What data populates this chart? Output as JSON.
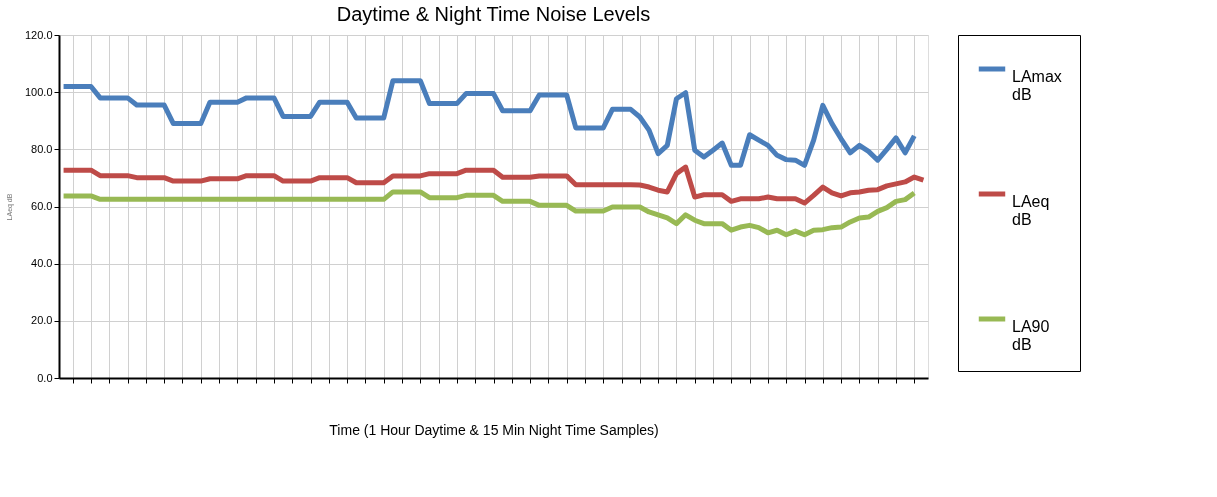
{
  "chart_data": {
    "type": "line",
    "title": "Daytime & Night Time Noise Levels",
    "xlabel": "Time (1 Hour Daytime & 15 Min Night Time Samples)",
    "ylabel": "LAeq dB",
    "categories": [
      null,
      null,
      null,
      null,
      null,
      null,
      null,
      null,
      null,
      null,
      null,
      null,
      null,
      null,
      null,
      null,
      null,
      null,
      null,
      null,
      null,
      null,
      null,
      null,
      null,
      null,
      null,
      null,
      null,
      null,
      null,
      null,
      null,
      null,
      null,
      null,
      null,
      null,
      null,
      null,
      null,
      null,
      null,
      null,
      null,
      null,
      null,
      null,
      null,
      null,
      null,
      null,
      null,
      null,
      null,
      null,
      null,
      null,
      null,
      null,
      null,
      null,
      null,
      null,
      null,
      null,
      null,
      null,
      null,
      null,
      null,
      null,
      null,
      null,
      null,
      null,
      null,
      null,
      null,
      null,
      null,
      null,
      null,
      null,
      null,
      null,
      null,
      null,
      null,
      null,
      null,
      null,
      null,
      null,
      null
    ],
    "series": [
      {
        "name": "LAmax dB",
        "color": "#4a7ebb",
        "values": [
          102,
          102,
          102,
          102,
          98,
          98,
          98,
          98,
          95.5,
          95.5,
          95.5,
          95.5,
          89,
          89,
          89,
          89,
          96.5,
          96.5,
          96.5,
          96.5,
          98,
          98,
          98,
          98,
          91.5,
          91.5,
          91.5,
          91.5,
          96.5,
          96.5,
          96.5,
          96.5,
          91,
          91,
          91,
          91,
          104,
          104,
          104,
          104,
          96,
          96,
          96,
          96,
          99.5,
          99.5,
          99.5,
          99.5,
          93.5,
          93.5,
          93.5,
          93.5,
          99,
          99,
          99,
          99,
          87.5,
          87.5,
          87.5,
          87.5,
          94,
          94,
          94,
          91.3,
          86.7,
          78.5,
          81.4,
          97.7,
          99.8,
          79.7,
          77.3,
          79.7,
          82.2,
          74.4,
          74.4,
          85.1,
          83.2,
          81.4,
          77.9,
          76.4,
          76.2,
          74.4,
          83.2,
          95.4,
          89,
          83.7,
          78.8,
          81.4,
          79.3,
          76.2,
          80,
          84,
          78.8,
          84.7,
          null
        ]
      },
      {
        "name": "LAeq dB",
        "color": "#be4b48",
        "values": [
          72.7,
          72.7,
          72.7,
          72.7,
          70.8,
          70.8,
          70.8,
          70.8,
          70.1,
          70.1,
          70.1,
          70.1,
          68.9,
          68.9,
          68.9,
          68.9,
          69.7,
          69.7,
          69.7,
          69.7,
          70.8,
          70.8,
          70.8,
          70.8,
          68.9,
          68.9,
          68.9,
          68.9,
          70.1,
          70.1,
          70.1,
          70.1,
          68.3,
          68.3,
          68.3,
          68.3,
          70.7,
          70.7,
          70.7,
          70.7,
          71.5,
          71.5,
          71.5,
          71.5,
          72.7,
          72.7,
          72.7,
          72.7,
          70.2,
          70.2,
          70.2,
          70.2,
          70.7,
          70.7,
          70.7,
          70.7,
          67.6,
          67.6,
          67.6,
          67.6,
          67.6,
          67.6,
          67.6,
          67.5,
          66.8,
          65.7,
          65.1,
          71.5,
          73.8,
          63.3,
          64.1,
          64.1,
          64.1,
          61.8,
          62.7,
          62.7,
          62.7,
          63.3,
          62.7,
          62.7,
          62.7,
          61.2,
          63.9,
          66.8,
          64.8,
          63.7,
          64.8,
          65.1,
          65.7,
          65.9,
          67.2,
          67.9,
          68.6,
          70.3,
          69.2
        ]
      },
      {
        "name": "LA90 dB",
        "color": "#98b954",
        "values": [
          63.7,
          63.7,
          63.7,
          63.7,
          62.5,
          62.5,
          62.5,
          62.5,
          62.5,
          62.5,
          62.5,
          62.5,
          62.5,
          62.5,
          62.5,
          62.5,
          62.5,
          62.5,
          62.5,
          62.5,
          62.5,
          62.5,
          62.5,
          62.5,
          62.5,
          62.5,
          62.5,
          62.5,
          62.5,
          62.5,
          62.5,
          62.5,
          62.5,
          62.5,
          62.5,
          62.5,
          65.1,
          65.1,
          65.1,
          65.1,
          63.1,
          63.1,
          63.1,
          63.1,
          63.9,
          63.9,
          63.9,
          63.9,
          61.8,
          61.8,
          61.8,
          61.8,
          60.4,
          60.4,
          60.4,
          60.4,
          58.4,
          58.4,
          58.4,
          58.4,
          59.8,
          59.8,
          59.8,
          59.8,
          58.1,
          57.1,
          56,
          54,
          57.1,
          55.2,
          54,
          54,
          54,
          51.7,
          52.8,
          53.4,
          52.6,
          50.8,
          51.7,
          50.1,
          51.4,
          50.1,
          51.7,
          51.9,
          52.6,
          52.8,
          54.6,
          56,
          56.3,
          58.3,
          59.6,
          61.8,
          62.4,
          64.7,
          null
        ]
      }
    ],
    "ylim": [
      0,
      120
    ],
    "yticks": [
      {
        "value": 0,
        "label": "0.0"
      },
      {
        "value": 20,
        "label": "20.0"
      },
      {
        "value": 40,
        "label": "40.0"
      },
      {
        "value": 60,
        "label": "60.0"
      },
      {
        "value": 80,
        "label": "80.0"
      },
      {
        "value": 100,
        "label": "100.0"
      },
      {
        "value": 120,
        "label": "120.0"
      }
    ],
    "grid": true,
    "legend": "right",
    "line_style": "solid",
    "marker": "none"
  }
}
